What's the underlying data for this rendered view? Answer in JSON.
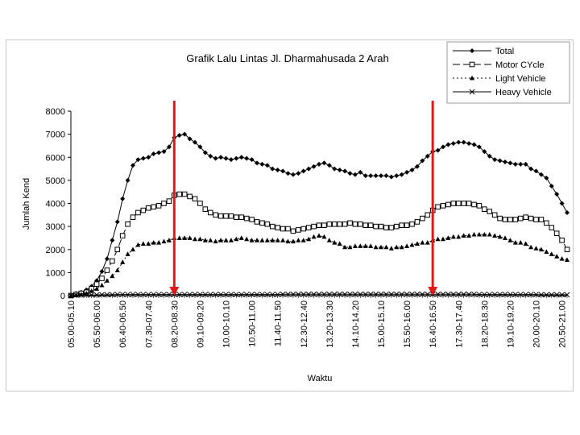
{
  "chart_data": {
    "type": "line",
    "title": "Grafik Lalu Lintas Jl. Dharmahusada 2 Arah",
    "xlabel": "Waktu",
    "ylabel": "Jumlah Kend",
    "ylim": [
      0,
      8000
    ],
    "yticks": [
      "0",
      "1000",
      "2000",
      "3000",
      "4000",
      "5000",
      "6000",
      "7000",
      "8000"
    ],
    "grid": false,
    "legend_position": "top-right",
    "xtick_labels": [
      "05.00-05.10",
      "05.50-06.00",
      "06.40-06.50",
      "07.30-07.40",
      "08.20-08.30",
      "09.10-09.20",
      "10.00-10.10",
      "10.50-11.00",
      "11.40-11.50",
      "12.30-12.40",
      "13.20-13.30",
      "14.10-14.20",
      "15.00-15.10",
      "15.50-16.00",
      "16.40-16.50",
      "17.30-17.40",
      "18.20-18.30",
      "19.10-19.20",
      "20.00-20.10",
      "20.50-21.00"
    ],
    "x_count": 97,
    "series": [
      {
        "name": "Total",
        "marker": "diamond",
        "dash": "solid",
        "values": [
          50,
          100,
          150,
          250,
          400,
          650,
          1050,
          1600,
          2400,
          3200,
          4200,
          5000,
          5650,
          5900,
          5950,
          6000,
          6150,
          6200,
          6250,
          6450,
          6850,
          6950,
          7000,
          6800,
          6650,
          6450,
          6200,
          6050,
          5950,
          6000,
          5950,
          5900,
          5950,
          6000,
          5950,
          5900,
          5750,
          5700,
          5650,
          5500,
          5450,
          5400,
          5300,
          5250,
          5300,
          5400,
          5500,
          5600,
          5700,
          5750,
          5650,
          5500,
          5450,
          5400,
          5300,
          5250,
          5350,
          5200,
          5200,
          5200,
          5200,
          5200,
          5150,
          5200,
          5250,
          5350,
          5450,
          5600,
          5850,
          6050,
          6250,
          6300,
          6450,
          6550,
          6600,
          6650,
          6650,
          6600,
          6550,
          6450,
          6250,
          6050,
          5900,
          5850,
          5800,
          5750,
          5700,
          5700,
          5700,
          5500,
          5400,
          5250,
          5100,
          4750,
          4400,
          4000,
          3600
        ]
      },
      {
        "name": "Motor CYcle",
        "marker": "square",
        "dash": "longdash",
        "values": [
          0,
          50,
          100,
          150,
          300,
          500,
          750,
          1100,
          1500,
          2000,
          2600,
          3100,
          3400,
          3600,
          3700,
          3800,
          3850,
          3900,
          4000,
          4100,
          4350,
          4400,
          4400,
          4300,
          4200,
          4000,
          3750,
          3600,
          3500,
          3450,
          3450,
          3450,
          3400,
          3400,
          3350,
          3300,
          3200,
          3150,
          3100,
          3000,
          2950,
          2900,
          2900,
          2800,
          2850,
          2900,
          2950,
          3000,
          3050,
          3050,
          3100,
          3100,
          3100,
          3100,
          3150,
          3100,
          3100,
          3050,
          3050,
          3000,
          3000,
          2950,
          2950,
          3000,
          3050,
          3050,
          3100,
          3200,
          3350,
          3500,
          3700,
          3850,
          3900,
          3950,
          4000,
          4000,
          4000,
          4000,
          3950,
          3900,
          3750,
          3650,
          3500,
          3350,
          3300,
          3300,
          3300,
          3350,
          3400,
          3350,
          3300,
          3300,
          3150,
          2950,
          2700,
          2400,
          2000
        ]
      },
      {
        "name": "Light Vehicle",
        "marker": "triangle",
        "dash": "dotted",
        "values": [
          0,
          30,
          50,
          100,
          200,
          300,
          450,
          650,
          850,
          1100,
          1450,
          1800,
          2000,
          2200,
          2250,
          2250,
          2300,
          2300,
          2350,
          2400,
          2500,
          2500,
          2500,
          2500,
          2450,
          2450,
          2400,
          2400,
          2350,
          2400,
          2400,
          2400,
          2450,
          2500,
          2450,
          2400,
          2400,
          2400,
          2400,
          2400,
          2400,
          2400,
          2350,
          2350,
          2400,
          2400,
          2450,
          2550,
          2600,
          2550,
          2400,
          2300,
          2250,
          2100,
          2100,
          2150,
          2150,
          2150,
          2150,
          2100,
          2100,
          2100,
          2050,
          2100,
          2100,
          2150,
          2200,
          2250,
          2300,
          2300,
          2400,
          2450,
          2450,
          2500,
          2550,
          2550,
          2600,
          2600,
          2650,
          2650,
          2650,
          2650,
          2600,
          2550,
          2500,
          2400,
          2300,
          2300,
          2250,
          2100,
          2050,
          2000,
          1900,
          1800,
          1700,
          1600,
          1550
        ]
      },
      {
        "name": "Heavy Vehicle",
        "marker": "x",
        "dash": "solid",
        "values": [
          0,
          20,
          20,
          30,
          30,
          30,
          40,
          40,
          40,
          50,
          50,
          50,
          50,
          50,
          50,
          50,
          50,
          50,
          50,
          50,
          50,
          50,
          50,
          50,
          50,
          50,
          50,
          50,
          50,
          50,
          50,
          50,
          50,
          50,
          50,
          50,
          50,
          50,
          50,
          50,
          50,
          60,
          60,
          60,
          60,
          60,
          60,
          60,
          60,
          60,
          60,
          60,
          60,
          60,
          60,
          60,
          60,
          60,
          60,
          60,
          60,
          60,
          60,
          60,
          60,
          60,
          60,
          60,
          60,
          60,
          60,
          60,
          60,
          60,
          60,
          60,
          60,
          60,
          60,
          50,
          50,
          50,
          50,
          50,
          50,
          50,
          50,
          50,
          50,
          50,
          50,
          40,
          40,
          40,
          40,
          40,
          40
        ]
      }
    ],
    "annotations": [
      {
        "type": "arrow",
        "color": "#e01a1a",
        "at_tick": "08.20-08.30"
      },
      {
        "type": "arrow",
        "color": "#e01a1a",
        "at_tick": "16.40-16.50"
      }
    ],
    "colors": {
      "line": "#000000",
      "arrow": "#e01a1a"
    }
  }
}
